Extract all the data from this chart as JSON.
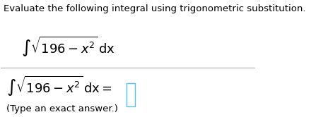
{
  "title_text": "Evaluate the following integral using trigonometric substitution.",
  "integral1": "$\\int \\sqrt{196 - x^2}\\,\\mathrm{dx}$",
  "integral2": "$\\int \\sqrt{196 - x^2}\\,\\mathrm{dx} = $",
  "note": "(Type an exact answer.)",
  "bg_color": "#ffffff",
  "title_color": "#000000",
  "title_fontsize": 9.5,
  "integral_fontsize": 13,
  "note_fontsize": 9.5,
  "note_color": "#000000",
  "line_color": "#aaaaaa",
  "box_color": "#4fc3f7"
}
